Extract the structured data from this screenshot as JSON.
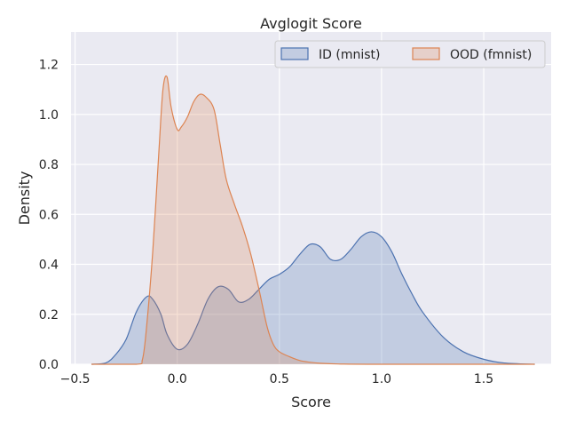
{
  "chart_data": {
    "type": "area",
    "title": "Avglogit Score",
    "xlabel": "Score",
    "ylabel": "Density",
    "xlim": [
      -0.52,
      1.83
    ],
    "ylim": [
      0,
      1.33
    ],
    "xticks": [
      -0.5,
      0.0,
      0.5,
      1.0,
      1.5
    ],
    "xtick_labels": [
      "−0.5",
      "0.0",
      "0.5",
      "1.0",
      "1.5"
    ],
    "yticks": [
      0.0,
      0.2,
      0.4,
      0.6,
      0.8,
      1.0,
      1.2
    ],
    "ytick_labels": [
      "0.0",
      "0.2",
      "0.4",
      "0.6",
      "0.8",
      "1.0",
      "1.2"
    ],
    "grid": true,
    "legend_position": "upper-right",
    "series": [
      {
        "name": "ID (mnist)",
        "color": "#4c72b0",
        "x": [
          -0.42,
          -0.35,
          -0.3,
          -0.25,
          -0.2,
          -0.15,
          -0.12,
          -0.08,
          -0.05,
          0.0,
          0.05,
          0.1,
          0.15,
          0.2,
          0.25,
          0.3,
          0.35,
          0.4,
          0.45,
          0.5,
          0.55,
          0.6,
          0.65,
          0.7,
          0.75,
          0.8,
          0.85,
          0.9,
          0.95,
          1.0,
          1.05,
          1.1,
          1.15,
          1.2,
          1.3,
          1.4,
          1.5,
          1.6,
          1.75
        ],
        "y": [
          0.0,
          0.005,
          0.04,
          0.1,
          0.21,
          0.27,
          0.26,
          0.2,
          0.12,
          0.06,
          0.08,
          0.16,
          0.26,
          0.31,
          0.3,
          0.25,
          0.26,
          0.3,
          0.34,
          0.36,
          0.39,
          0.44,
          0.48,
          0.47,
          0.42,
          0.42,
          0.46,
          0.51,
          0.53,
          0.51,
          0.45,
          0.36,
          0.28,
          0.21,
          0.11,
          0.05,
          0.02,
          0.005,
          0.0
        ]
      },
      {
        "name": "OOD (fmnist)",
        "color": "#dd8452",
        "x": [
          -0.42,
          -0.2,
          -0.17,
          -0.15,
          -0.12,
          -0.09,
          -0.07,
          -0.05,
          -0.03,
          0.0,
          0.02,
          0.05,
          0.08,
          0.11,
          0.14,
          0.18,
          0.21,
          0.24,
          0.28,
          0.32,
          0.36,
          0.4,
          0.44,
          0.47,
          0.5,
          0.55,
          0.6,
          0.65,
          0.7,
          0.8,
          1.0,
          1.75
        ],
        "y": [
          0.0,
          0.0,
          0.02,
          0.15,
          0.45,
          0.85,
          1.1,
          1.15,
          1.03,
          0.94,
          0.95,
          0.99,
          1.05,
          1.08,
          1.07,
          1.02,
          0.88,
          0.74,
          0.64,
          0.55,
          0.44,
          0.3,
          0.15,
          0.08,
          0.05,
          0.03,
          0.015,
          0.008,
          0.004,
          0.001,
          0.0,
          0.0
        ]
      }
    ]
  }
}
